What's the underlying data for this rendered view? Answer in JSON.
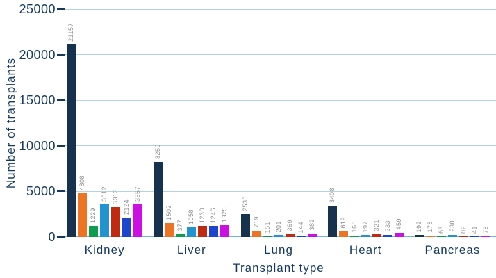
{
  "colors": {
    "axis_text": "#15395e",
    "grid_line": "#b3d3e1",
    "baseline": "#6fb6da",
    "tick_mark": "#17375c",
    "value_label": "#909090",
    "background": "#ffffff"
  },
  "chart_data": {
    "type": "bar",
    "title": "",
    "xlabel": "Transplant type",
    "ylabel": "Number of transplants",
    "ylim": [
      0,
      25000
    ],
    "yticks": [
      0,
      5000,
      10000,
      15000,
      20000,
      25000
    ],
    "grid": true,
    "legend_position": "none",
    "bar_value_labels": true,
    "categories": [
      "Kidney",
      "Liver",
      "Lung",
      "Heart",
      "Pancreas"
    ],
    "series": [
      {
        "name": "series-1",
        "color": "#16324f",
        "values": [
          21157,
          8250,
          2530,
          3408,
          192
        ]
      },
      {
        "name": "series-2",
        "color": "#ec7423",
        "values": [
          4808,
          1502,
          719,
          619,
          178
        ]
      },
      {
        "name": "series-3",
        "color": "#0c9d4e",
        "values": [
          1229,
          377,
          151,
          168,
          63
        ]
      },
      {
        "name": "series-4",
        "color": "#2093d0",
        "values": [
          3612,
          1058,
          201,
          197,
          230
        ]
      },
      {
        "name": "series-5",
        "color": "#c12a10",
        "values": [
          3313,
          1230,
          369,
          321,
          82
        ]
      },
      {
        "name": "series-6",
        "color": "#1c45cf",
        "values": [
          2124,
          1246,
          144,
          233,
          41
        ]
      },
      {
        "name": "series-7",
        "color": "#cd0fe3",
        "values": [
          3557,
          1325,
          382,
          459,
          78
        ]
      }
    ]
  }
}
